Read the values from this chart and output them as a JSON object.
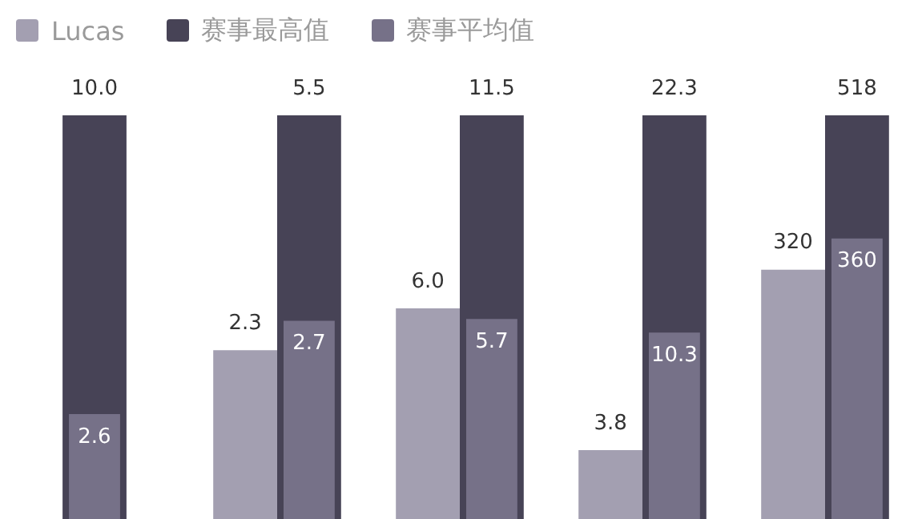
{
  "chart_data": [
    {
      "type": "bar",
      "categories": [
        null
      ],
      "series": [
        {
          "color": "#474356",
          "values": [
            10.0
          ],
          "value_labels": [
            "10.0"
          ]
        },
        {
          "color": "#767188",
          "values": [
            2.6
          ],
          "value_labels": [
            "2.6"
          ]
        }
      ]
    },
    {
      "type": "bar",
      "categories": [
        null
      ],
      "legend": "top",
      "series": [
        {
          "name": "Lucas",
          "color": "#a39fb1",
          "values": [
            2.3
          ],
          "value_labels": [
            "2.3"
          ]
        },
        {
          "name": "赛事最高值",
          "color": "#474356",
          "values": [
            5.5
          ],
          "value_labels": [
            "5.5"
          ]
        },
        {
          "name": "赛事平均值",
          "color": "#767188",
          "values": [
            2.7
          ],
          "value_labels": [
            "2.7"
          ]
        }
      ]
    },
    {
      "type": "bar",
      "categories": [
        null
      ],
      "series": [
        {
          "color": "#a39fb1",
          "values": [
            6.0
          ],
          "value_labels": [
            "6.0"
          ]
        },
        {
          "color": "#474356",
          "values": [
            11.5
          ],
          "value_labels": [
            "11.5"
          ]
        },
        {
          "color": "#767188",
          "values": [
            5.7
          ],
          "value_labels": [
            "5.7"
          ]
        }
      ]
    },
    {
      "type": "bar",
      "categories": [
        null
      ],
      "series": [
        {
          "color": "#a39fb1",
          "values": [
            3.8
          ],
          "value_labels": [
            "3.8"
          ]
        },
        {
          "color": "#474356",
          "values": [
            22.3
          ],
          "value_labels": [
            "22.3"
          ]
        },
        {
          "color": "#767188",
          "values": [
            10.3
          ],
          "value_labels": [
            "10.3"
          ]
        }
      ]
    },
    {
      "type": "bar",
      "categories": [
        null
      ],
      "series": [
        {
          "color": "#a39fb1",
          "values": [
            320
          ],
          "value_labels": [
            "320"
          ]
        },
        {
          "color": "#474356",
          "values": [
            518
          ],
          "value_labels": [
            "518"
          ]
        },
        {
          "color": "#767188",
          "values": [
            360
          ],
          "value_labels": [
            "360"
          ]
        }
      ]
    }
  ]
}
